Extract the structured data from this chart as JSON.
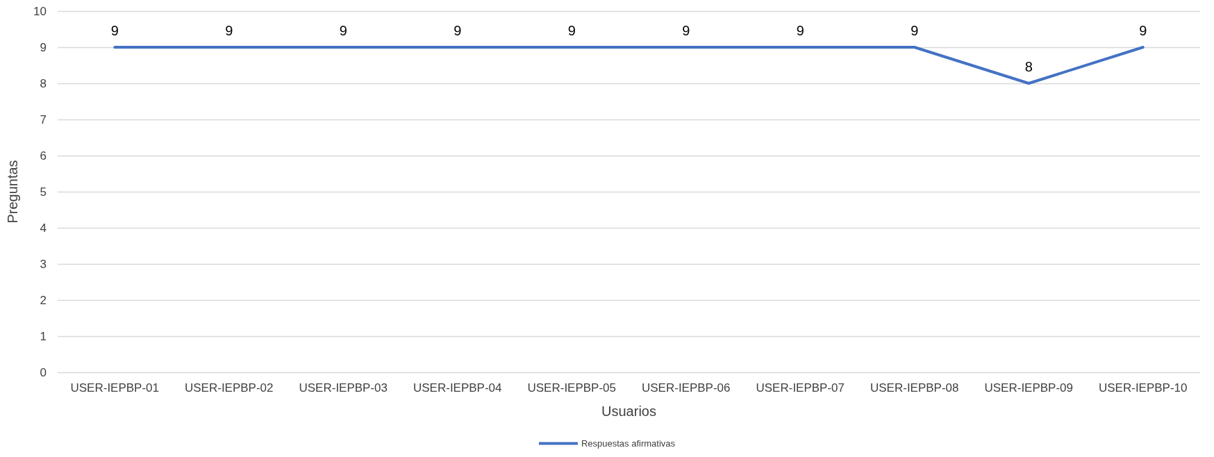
{
  "chart_data": {
    "type": "line",
    "xlabel": "Usuarios",
    "ylabel": "Preguntas",
    "categories": [
      "USER-IEPBP-01",
      "USER-IEPBP-02",
      "USER-IEPBP-03",
      "USER-IEPBP-04",
      "USER-IEPBP-05",
      "USER-IEPBP-06",
      "USER-IEPBP-07",
      "USER-IEPBP-08",
      "USER-IEPBP-09",
      "USER-IEPBP-10"
    ],
    "series": [
      {
        "name": "Respuestas afirmativas",
        "color": "#4472c4",
        "values": [
          9,
          9,
          9,
          9,
          9,
          9,
          9,
          9,
          8,
          9
        ]
      }
    ],
    "ylim": [
      0,
      10
    ],
    "yticks": [
      0,
      1,
      2,
      3,
      4,
      5,
      6,
      7,
      8,
      9,
      10
    ],
    "grid": "y",
    "legend": "bottom",
    "data_labels": true,
    "marker": "none",
    "line_style": "solid"
  }
}
